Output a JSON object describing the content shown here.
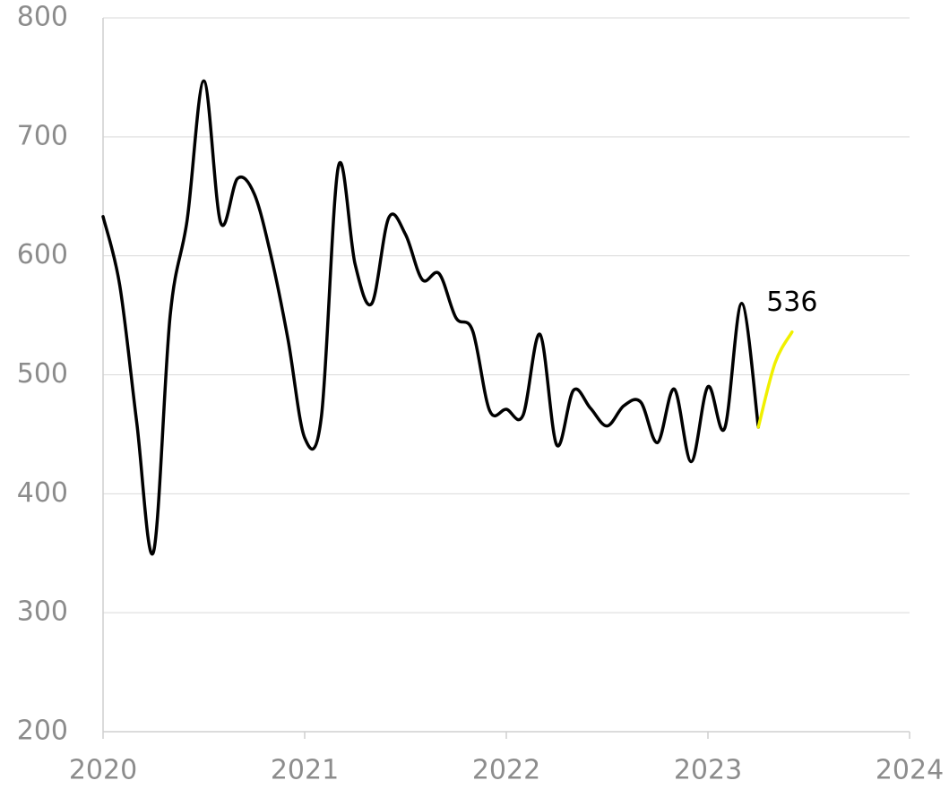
{
  "chart_data": {
    "type": "line",
    "x": [
      2020,
      2020.083,
      2020.167,
      2020.25,
      2020.333,
      2020.417,
      2020.5,
      2020.583,
      2020.667,
      2020.75,
      2020.833,
      2020.917,
      2021,
      2021.083,
      2021.167,
      2021.25,
      2021.333,
      2021.417,
      2021.5,
      2021.583,
      2021.667,
      2021.75,
      2021.833,
      2021.917,
      2022,
      2022.083,
      2022.167,
      2022.25,
      2022.333,
      2022.417,
      2022.5,
      2022.583,
      2022.667,
      2022.75,
      2022.833,
      2022.917,
      2023,
      2023.083,
      2023.167,
      2023.25,
      2023.333,
      2023.417
    ],
    "series": [
      {
        "color": "#000000",
        "values": [
          633,
          575,
          460,
          351,
          550,
          630,
          747,
          628,
          665,
          652,
          600,
          530,
          447,
          465,
          675,
          593,
          560,
          632,
          618,
          580,
          585,
          548,
          537,
          470,
          471,
          466,
          534,
          441,
          487,
          472,
          457,
          474,
          477,
          443,
          488,
          427,
          490,
          455,
          560,
          456,
          null,
          null
        ]
      },
      {
        "color": "#f0f000",
        "values": [
          null,
          null,
          null,
          null,
          null,
          null,
          null,
          null,
          null,
          null,
          null,
          null,
          null,
          null,
          null,
          null,
          null,
          null,
          null,
          null,
          null,
          null,
          null,
          null,
          null,
          null,
          null,
          null,
          null,
          null,
          null,
          null,
          null,
          null,
          null,
          null,
          null,
          null,
          null,
          456,
          510,
          536
        ]
      }
    ],
    "xlim": [
      2020,
      2024
    ],
    "xticks": [
      2020,
      2021,
      2022,
      2023,
      2024
    ],
    "ylim": [
      200,
      800
    ],
    "yticks": [
      200,
      300,
      400,
      500,
      600,
      700,
      800
    ],
    "grid": true
  }
}
